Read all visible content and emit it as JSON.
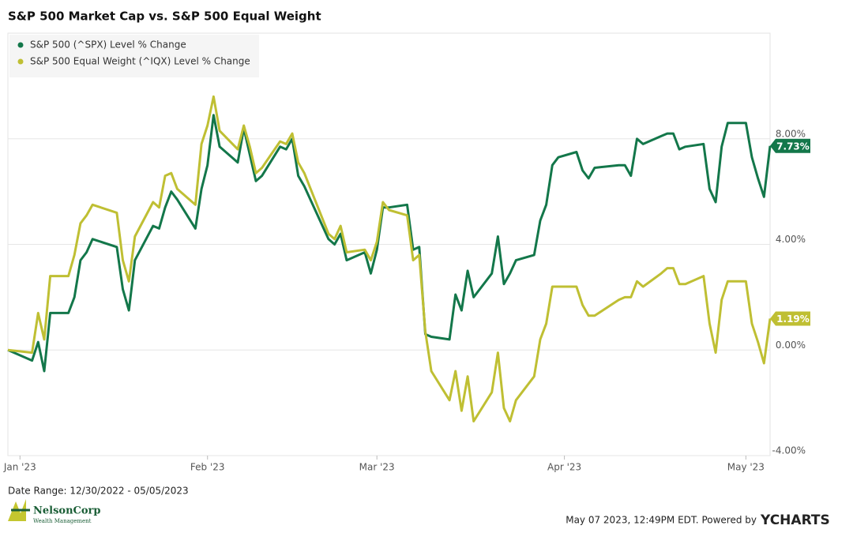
{
  "chart_data": {
    "type": "line",
    "title": "S&P 500 Market Cap vs. S&P 500 Equal Weight",
    "x": [
      "2022-12-30",
      "2023-01-03",
      "2023-01-04",
      "2023-01-05",
      "2023-01-06",
      "2023-01-09",
      "2023-01-10",
      "2023-01-11",
      "2023-01-12",
      "2023-01-13",
      "2023-01-17",
      "2023-01-18",
      "2023-01-19",
      "2023-01-20",
      "2023-01-23",
      "2023-01-24",
      "2023-01-25",
      "2023-01-26",
      "2023-01-27",
      "2023-01-30",
      "2023-01-31",
      "2023-02-01",
      "2023-02-02",
      "2023-02-03",
      "2023-02-06",
      "2023-02-07",
      "2023-02-08",
      "2023-02-09",
      "2023-02-10",
      "2023-02-13",
      "2023-02-14",
      "2023-02-15",
      "2023-02-16",
      "2023-02-17",
      "2023-02-21",
      "2023-02-22",
      "2023-02-23",
      "2023-02-24",
      "2023-02-27",
      "2023-02-28",
      "2023-03-01",
      "2023-03-02",
      "2023-03-03",
      "2023-03-06",
      "2023-03-07",
      "2023-03-08",
      "2023-03-09",
      "2023-03-10",
      "2023-03-13",
      "2023-03-14",
      "2023-03-15",
      "2023-03-16",
      "2023-03-17",
      "2023-03-20",
      "2023-03-21",
      "2023-03-22",
      "2023-03-23",
      "2023-03-24",
      "2023-03-27",
      "2023-03-28",
      "2023-03-29",
      "2023-03-30",
      "2023-03-31",
      "2023-04-03",
      "2023-04-04",
      "2023-04-05",
      "2023-04-06",
      "2023-04-10",
      "2023-04-11",
      "2023-04-12",
      "2023-04-13",
      "2023-04-14",
      "2023-04-17",
      "2023-04-18",
      "2023-04-19",
      "2023-04-20",
      "2023-04-21",
      "2023-04-24",
      "2023-04-25",
      "2023-04-26",
      "2023-04-27",
      "2023-04-28",
      "2023-05-01",
      "2023-05-02",
      "2023-05-03",
      "2023-05-04",
      "2023-05-05"
    ],
    "series": [
      {
        "name": "S&P 500 (^SPX) Level % Change",
        "color": "#13774a",
        "end_label": "7.73%",
        "values": [
          0,
          -0.4,
          0.3,
          -0.8,
          1.4,
          1.4,
          2.0,
          3.4,
          3.7,
          4.2,
          3.9,
          2.3,
          1.5,
          3.4,
          4.7,
          4.6,
          5.4,
          6.0,
          5.7,
          4.6,
          6.1,
          7.0,
          8.9,
          7.7,
          7.1,
          8.4,
          7.4,
          6.4,
          6.6,
          7.7,
          7.6,
          8.0,
          6.6,
          6.2,
          4.2,
          4.0,
          4.4,
          3.4,
          3.7,
          2.9,
          3.8,
          5.4,
          5.4,
          5.5,
          3.8,
          3.9,
          0.6,
          0.5,
          0.4,
          2.1,
          1.5,
          3.0,
          2.0,
          2.9,
          4.3,
          2.5,
          2.9,
          3.4,
          3.6,
          4.9,
          5.5,
          7.0,
          7.3,
          7.5,
          6.8,
          6.5,
          6.9,
          7.0,
          7.0,
          6.6,
          8.0,
          7.8,
          8.1,
          8.2,
          8.2,
          7.6,
          7.7,
          7.8,
          6.1,
          5.6,
          7.7,
          8.6,
          8.6,
          7.3,
          6.5,
          5.8,
          7.73
        ]
      },
      {
        "name": "S&P 500 Equal Weight (^IQX) Level % Change",
        "color": "#bfbf33",
        "end_label": "1.19%",
        "values": [
          0,
          -0.1,
          1.4,
          0.4,
          2.8,
          2.8,
          3.6,
          4.8,
          5.1,
          5.5,
          5.2,
          3.4,
          2.6,
          4.3,
          5.6,
          5.4,
          6.6,
          6.7,
          6.1,
          5.5,
          7.8,
          8.5,
          9.6,
          8.3,
          7.6,
          8.5,
          7.7,
          6.7,
          6.9,
          7.9,
          7.8,
          8.2,
          7.1,
          6.7,
          4.4,
          4.2,
          4.7,
          3.7,
          3.8,
          3.4,
          4.1,
          5.6,
          5.3,
          5.1,
          3.4,
          3.6,
          0.7,
          -0.8,
          -1.9,
          -0.8,
          -2.3,
          -1.0,
          -2.7,
          -1.6,
          -0.1,
          -2.2,
          -2.7,
          -1.9,
          -1.0,
          0.4,
          1.0,
          2.4,
          2.4,
          2.4,
          1.7,
          1.3,
          1.3,
          1.9,
          2.0,
          2.0,
          2.6,
          2.4,
          2.9,
          3.1,
          3.1,
          2.5,
          2.5,
          2.8,
          1.0,
          -0.1,
          1.9,
          2.6,
          2.6,
          1.0,
          0.3,
          -0.5,
          1.19
        ]
      }
    ],
    "xlim": [
      "2022-12-30",
      "2023-05-05"
    ],
    "xticks": [
      {
        "value": "2023-01-01",
        "label": "Jan '23"
      },
      {
        "value": "2023-02-01",
        "label": "Feb '23"
      },
      {
        "value": "2023-03-01",
        "label": "Mar '23"
      },
      {
        "value": "2023-04-01",
        "label": "Apr '23"
      },
      {
        "value": "2023-05-01",
        "label": "May '23"
      }
    ],
    "ylim": [
      -4,
      12
    ],
    "yticks": [
      {
        "value": -4,
        "label": "-4.00%"
      },
      {
        "value": 0,
        "label": "0.00%"
      },
      {
        "value": 4,
        "label": "4.00%"
      },
      {
        "value": 8,
        "label": "8.00%"
      }
    ],
    "grid": true,
    "legend": "top-left",
    "date_range": "Date Range: 12/30/2022 - 05/05/2023",
    "logo": {
      "name": "NelsonCorp",
      "tagline": "Wealth Management"
    },
    "footer": "May 07 2023, 12:49PM EDT.  Powered by",
    "brand": "YCHARTS"
  }
}
